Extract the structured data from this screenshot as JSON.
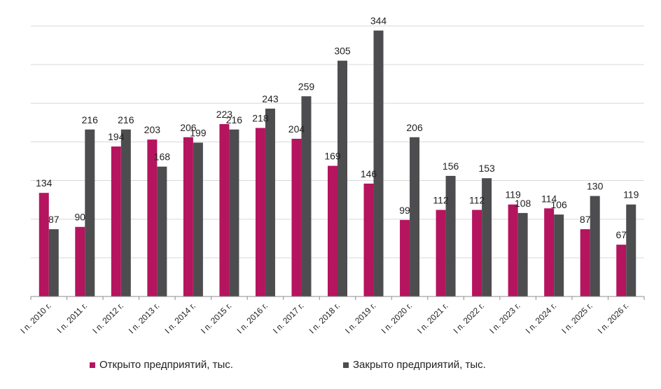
{
  "chart_data": {
    "type": "bar",
    "title": "",
    "xlabel": "",
    "ylabel": "",
    "ylim": [
      0,
      350
    ],
    "grid": true,
    "legend_position": "bottom",
    "categories": [
      "I п. 2010 г.",
      "I п. 2011 г.",
      "I п. 2012 г.",
      "I п. 2013 г.",
      "I п. 2014 г.",
      "I п. 2015 г.",
      "I п. 2016 г.",
      "I п. 2017 г.",
      "I п. 2018 г.",
      "I п. 2019 г.",
      "I п. 2020 г.",
      "I п. 2021 г.",
      "I п. 2022 г.",
      "I п. 2023 г.",
      "I п. 2024 г.",
      "I п. 2025 г.",
      "I п. 2026 г."
    ],
    "series": [
      {
        "name": "Открыто предприятий, тыс.",
        "color": "#b5145e",
        "values": [
          134,
          90,
          194,
          203,
          206,
          223,
          218,
          204,
          169,
          146,
          99,
          112,
          112,
          119,
          114,
          87,
          67
        ]
      },
      {
        "name": "Закрыто предприятий, тыс.",
        "color": "#4d4d4f",
        "values": [
          87,
          216,
          216,
          168,
          199,
          216,
          243,
          259,
          305,
          344,
          206,
          156,
          153,
          108,
          106,
          130,
          119
        ]
      }
    ]
  }
}
